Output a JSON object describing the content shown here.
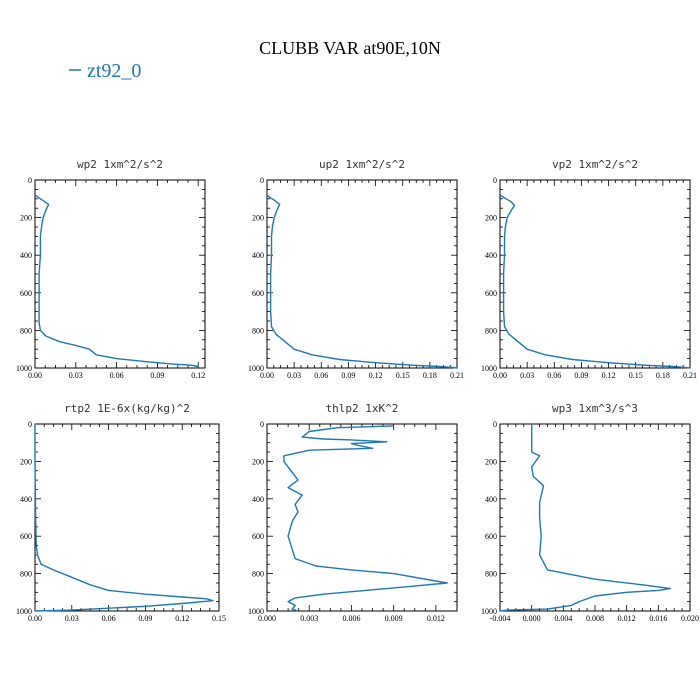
{
  "figure": {
    "title": "CLUBB VAR at90E,10N",
    "legend": {
      "label": "zt92_0",
      "color": "#1f77b4"
    }
  },
  "chart_data": [
    {
      "type": "line",
      "title": "wp2  1xm^2/s^2",
      "xlim": [
        0,
        0.125
      ],
      "ylim": [
        1000,
        0
      ],
      "xticks": [
        0.0,
        0.03,
        0.06,
        0.09,
        0.12
      ],
      "xtick_labels": [
        "0.00",
        "0.03",
        "0.06",
        "0.09",
        "0.12"
      ],
      "yticks": [
        0,
        200,
        400,
        600,
        800,
        1000
      ],
      "ytick_labels": [
        "0",
        "200",
        "400",
        "600",
        "800",
        "1000"
      ],
      "series": [
        {
          "name": "zt92_0",
          "x": [
            0,
            0.002,
            0.006,
            0.01,
            0.008,
            0.006,
            0.005,
            0.004,
            0.004,
            0.003,
            0.003,
            0.003,
            0.003,
            0.004,
            0.008,
            0.018,
            0.03,
            0.04,
            0.045,
            0.06,
            0.08,
            0.1,
            0.115,
            0.12,
            0.119
          ],
          "y": [
            80,
            90,
            110,
            130,
            160,
            200,
            240,
            300,
            400,
            500,
            600,
            700,
            760,
            800,
            830,
            860,
            880,
            900,
            930,
            950,
            965,
            978,
            985,
            992,
            1000
          ]
        }
      ]
    },
    {
      "type": "line",
      "title": "up2  1xm^2/s^2",
      "xlim": [
        0,
        0.21
      ],
      "ylim": [
        1000,
        0
      ],
      "xticks": [
        0.0,
        0.03,
        0.06,
        0.09,
        0.12,
        0.15,
        0.18,
        0.21
      ],
      "xtick_labels": [
        "0.00",
        "0.03",
        "0.06",
        "0.09",
        "0.12",
        "0.15",
        "0.18",
        "0.21"
      ],
      "yticks": [
        0,
        200,
        400,
        600,
        800,
        1000
      ],
      "ytick_labels": [
        "0",
        "200",
        "400",
        "600",
        "800",
        "1000"
      ],
      "series": [
        {
          "name": "zt92_0",
          "x": [
            0,
            0.004,
            0.009,
            0.014,
            0.011,
            0.008,
            0.006,
            0.005,
            0.005,
            0.004,
            0.004,
            0.004,
            0.005,
            0.01,
            0.02,
            0.03,
            0.05,
            0.08,
            0.12,
            0.16,
            0.19,
            0.205,
            0.21
          ],
          "y": [
            80,
            95,
            110,
            130,
            160,
            200,
            250,
            300,
            400,
            500,
            600,
            700,
            780,
            820,
            860,
            900,
            930,
            955,
            972,
            985,
            992,
            997,
            1000
          ]
        }
      ]
    },
    {
      "type": "line",
      "title": "vp2  1xm^2/s^2",
      "xlim": [
        0,
        0.21
      ],
      "ylim": [
        1000,
        0
      ],
      "xticks": [
        0.0,
        0.03,
        0.06,
        0.09,
        0.12,
        0.15,
        0.18,
        0.21
      ],
      "xtick_labels": [
        "0.00",
        "0.03",
        "0.06",
        "0.09",
        "0.12",
        "0.15",
        "0.18",
        "0.21"
      ],
      "yticks": [
        0,
        200,
        400,
        600,
        800,
        1000
      ],
      "ytick_labels": [
        "0",
        "200",
        "400",
        "600",
        "800",
        "1000"
      ],
      "series": [
        {
          "name": "zt92_0",
          "x": [
            0,
            0.005,
            0.012,
            0.016,
            0.012,
            0.008,
            0.006,
            0.005,
            0.005,
            0.004,
            0.004,
            0.004,
            0.005,
            0.01,
            0.02,
            0.03,
            0.05,
            0.08,
            0.12,
            0.16,
            0.19,
            0.205,
            0.21
          ],
          "y": [
            80,
            95,
            115,
            135,
            165,
            200,
            250,
            300,
            400,
            500,
            600,
            700,
            780,
            820,
            860,
            900,
            930,
            955,
            972,
            985,
            992,
            997,
            1000
          ]
        }
      ]
    },
    {
      "type": "line",
      "title": "rtp2  1E-6x(kg/kg)^2",
      "xlim": [
        0,
        0.15
      ],
      "ylim": [
        1000,
        0
      ],
      "xticks": [
        0.0,
        0.03,
        0.06,
        0.09,
        0.12,
        0.15
      ],
      "xtick_labels": [
        "0.00",
        "0.03",
        "0.06",
        "0.09",
        "0.12",
        "0.15"
      ],
      "yticks": [
        0,
        200,
        400,
        600,
        800,
        1000
      ],
      "ytick_labels": [
        "0",
        "200",
        "400",
        "600",
        "800",
        "1000"
      ],
      "series": [
        {
          "name": "zt92_0",
          "x": [
            0,
            0,
            0.0005,
            0.001,
            0.002,
            0.005,
            0.015,
            0.03,
            0.045,
            0.06,
            0.09,
            0.12,
            0.14,
            0.145,
            0.12,
            0.09,
            0.06,
            0.03,
            0
          ],
          "y": [
            0,
            200,
            500,
            650,
            700,
            750,
            780,
            820,
            860,
            890,
            910,
            925,
            935,
            945,
            960,
            975,
            985,
            995,
            1000
          ]
        }
      ]
    },
    {
      "type": "line",
      "title": "thlp2  1xK^2",
      "xlim": [
        0,
        0.0135
      ],
      "ylim": [
        1000,
        0
      ],
      "xticks": [
        0.0,
        0.003,
        0.006,
        0.009,
        0.012
      ],
      "xtick_labels": [
        "0.000",
        "0.003",
        "0.006",
        "0.009",
        "0.012"
      ],
      "yticks": [
        0,
        200,
        400,
        600,
        800,
        1000
      ],
      "ytick_labels": [
        "0",
        "200",
        "400",
        "600",
        "800",
        "1000"
      ],
      "series": [
        {
          "name": "zt92_0",
          "x": [
            0.009,
            0.005,
            0.003,
            0.0025,
            0.004,
            0.006,
            0.0085,
            0.006,
            0.0065,
            0.0075,
            0.003,
            0.0012,
            0.0012,
            0.0018,
            0.0022,
            0.0015,
            0.0025,
            0.002,
            0.0022,
            0.0018,
            0.0015,
            0.002,
            0.0035,
            0.006,
            0.009,
            0.0128,
            0.01,
            0.007,
            0.004,
            0.002,
            0.0015,
            0.002,
            0.0018,
            0.0022
          ],
          "y": [
            10,
            20,
            40,
            70,
            80,
            85,
            95,
            105,
            115,
            130,
            140,
            170,
            200,
            260,
            300,
            340,
            380,
            430,
            470,
            520,
            600,
            720,
            760,
            780,
            800,
            850,
            870,
            890,
            910,
            930,
            950,
            970,
            990,
            1000
          ]
        }
      ]
    },
    {
      "type": "line",
      "title": "wp3  1xm^3/s^3",
      "xlim": [
        -0.004,
        0.02
      ],
      "ylim": [
        1000,
        0
      ],
      "xticks": [
        -0.004,
        0.0,
        0.004,
        0.008,
        0.012,
        0.016,
        0.02
      ],
      "xtick_labels": [
        "-0.004",
        "0.000",
        "0.004",
        "0.008",
        "0.012",
        "0.016",
        "0.020"
      ],
      "yticks": [
        0,
        200,
        400,
        600,
        800,
        1000
      ],
      "ytick_labels": [
        "0",
        "200",
        "400",
        "600",
        "800",
        "1000"
      ],
      "series": [
        {
          "name": "zt92_0",
          "x": [
            0,
            0,
            0.001,
            0.0,
            0.0002,
            0.0015,
            0.001,
            0.001,
            0.0012,
            0.001,
            0.002,
            0.008,
            0.014,
            0.0175,
            0.016,
            0.012,
            0.008,
            0.006,
            0.005,
            0.002,
            -0.003,
            -0.004
          ],
          "y": [
            0,
            150,
            170,
            230,
            280,
            330,
            420,
            500,
            600,
            700,
            780,
            830,
            860,
            880,
            890,
            900,
            920,
            950,
            970,
            990,
            995,
            1000
          ]
        }
      ]
    }
  ]
}
